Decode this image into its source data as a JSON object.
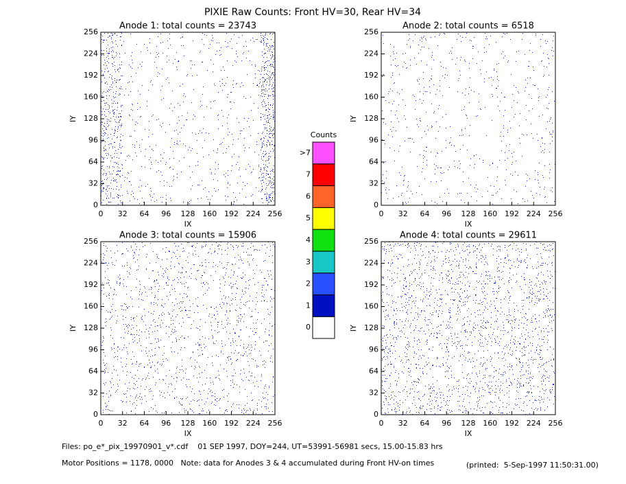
{
  "title": "PIXIE Raw Counts:  Front HV=30, Rear HV=34",
  "chart_data": [
    {
      "type": "heatmap",
      "title": "Anode 1: total counts = 23743",
      "xlabel": "IX",
      "ylabel": "IY",
      "xlim": [
        0,
        256
      ],
      "ylim": [
        0,
        256
      ],
      "xticks": [
        0,
        32,
        64,
        96,
        128,
        160,
        192,
        224,
        256
      ],
      "yticks": [
        0,
        32,
        64,
        96,
        128,
        160,
        192,
        224,
        256
      ]
    },
    {
      "type": "heatmap",
      "title": "Anode 2: total counts = 6518",
      "xlabel": "IX",
      "ylabel": "IY",
      "xlim": [
        0,
        256
      ],
      "ylim": [
        0,
        256
      ],
      "xticks": [
        0,
        32,
        64,
        96,
        128,
        160,
        192,
        224,
        256
      ],
      "yticks": [
        0,
        32,
        64,
        96,
        128,
        160,
        192,
        224,
        256
      ]
    },
    {
      "type": "heatmap",
      "title": "Anode 3: total counts = 15906",
      "xlabel": "IX",
      "ylabel": "IY",
      "xlim": [
        0,
        256
      ],
      "ylim": [
        0,
        256
      ],
      "xticks": [
        0,
        32,
        64,
        96,
        128,
        160,
        192,
        224,
        256
      ],
      "yticks": [
        0,
        32,
        64,
        96,
        128,
        160,
        192,
        224,
        256
      ]
    },
    {
      "type": "heatmap",
      "title": "Anode 4: total counts = 29611",
      "xlabel": "IX",
      "ylabel": "IY",
      "xlim": [
        0,
        256
      ],
      "ylim": [
        0,
        256
      ],
      "xticks": [
        0,
        32,
        64,
        96,
        128,
        160,
        192,
        224,
        256
      ],
      "yticks": [
        0,
        32,
        64,
        96,
        128,
        160,
        192,
        224,
        256
      ]
    },
    {
      "type": "colorbar",
      "title": "Counts",
      "ticks": [
        0,
        1,
        2,
        3,
        4,
        5,
        6,
        7,
        {
          "value": 8,
          "label": ">7"
        }
      ],
      "colors": [
        "#ffffff",
        "#0010c0",
        "#2850ff",
        "#18c8c8",
        "#10e010",
        "#ffff00",
        "#ff6428",
        "#ff0000",
        "#ff50ff"
      ]
    }
  ],
  "footer": {
    "files": "Files: po_e*_pix_19970901_v*.cdf    01 SEP 1997, DOY=244, UT=53991-56981 secs, 15.00-15.83 hrs",
    "motor": "Motor Positions = 1178, 0000   Note: data for Anodes 3 & 4 accumulated during Front HV-on times",
    "printed": "(printed:  5-Sep-1997 11:50:31.00)"
  }
}
